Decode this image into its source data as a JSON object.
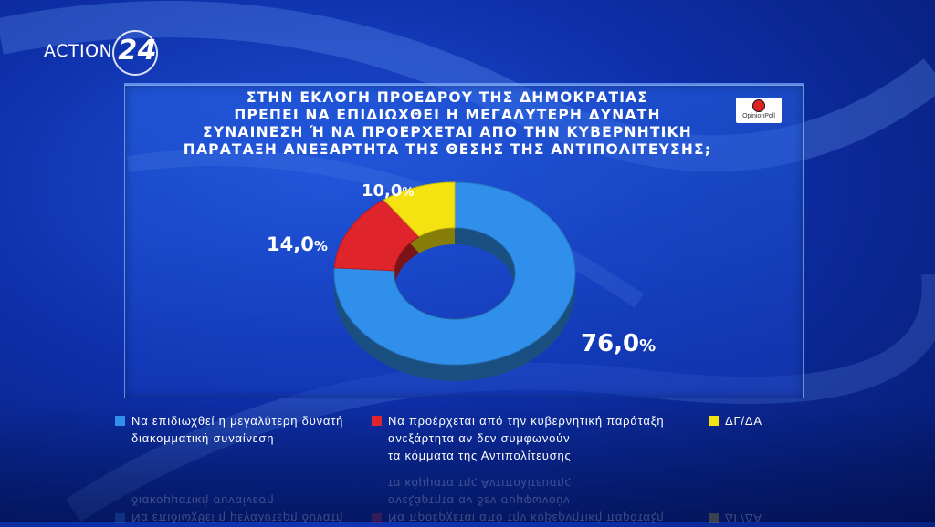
{
  "channel": {
    "name": "ACTION",
    "number": "24"
  },
  "brand": {
    "name": "OpinionPoll"
  },
  "title_lines": [
    "ΣΤΗΝ ΕΚΛΟΓΗ ΠΡΟΕΔΡΟΥ ΤΗΣ ΔΗΜΟΚΡΑΤΙΑΣ",
    "ΠΡΕΠΕΙ ΝΑ ΕΠΙΔΙΩΧΘΕΙ Η ΜΕΓΑΛΥΤΕΡΗ ΔΥΝΑΤΗ",
    "ΣΥΝΑΙΝΕΣΗ Ή ΝΑ ΠΡΟΕΡΧΕΤΑΙ ΑΠΟ ΤΗΝ ΚΥΒΕΡΝΗΤΙΚΗ",
    "ΠΑΡΑΤΑΞΗ ΑΝΕΞΑΡΤΗΤΑ ΤΗΣ ΘΕΣΗΣ ΤΗΣ ΑΝΤΙΠΟΛΙΤΕΥΣΗΣ;"
  ],
  "chart_data": {
    "type": "pie",
    "title": "ΣΤΗΝ ΕΚΛΟΓΗ ΠΡΟΕΔΡΟΥ ΤΗΣ ΔΗΜΟΚΡΑΤΙΑΣ ΠΡΕΠΕΙ ΝΑ ΕΠΙΔΙΩΧΘΕΙ Η ΜΕΓΑΛΥΤΕΡΗ ΔΥΝΑΤΗ ΣΥΝΑΙΝΕΣΗ Ή ΝΑ ΠΡΟΕΡΧΕΤΑΙ ΑΠΟ ΤΗΝ ΚΥΒΕΡΝΗΤΙΚΗ ΠΑΡΑΤΑΞΗ ΑΝΕΞΑΡΤΗΤΑ ΤΗΣ ΘΕΣΗΣ ΤΗΣ ΑΝΤΙΠΟΛΙΤΕΥΣΗΣ;",
    "donut": true,
    "legend_position": "bottom",
    "slices": [
      {
        "label": "Να επιδιωχθεί η μεγαλύτερη δυνατή διακομματική συναίνεση",
        "value": 76.0,
        "display": "76,0",
        "color": "#2f8fea"
      },
      {
        "label": "Να προέρχεται από την κυβερνητική παράταξη ανεξάρτητα αν δεν συμφωνούν τα κόμματα της Αντιπολίτευσης",
        "value": 14.0,
        "display": "14,0",
        "color": "#e0242b"
      },
      {
        "label": "ΔΓ/ΔΑ",
        "value": 10.0,
        "display": "10,0",
        "color": "#f5e311"
      }
    ]
  },
  "legend": [
    {
      "lines": [
        "Να επιδιωχθεί η μεγαλύτερη δυνατή",
        "διακομματική συναίνεση"
      ]
    },
    {
      "lines": [
        "Να προέρχεται από την κυβερνητική παράταξη",
        "ανεξάρτητα αν δεν συμφωνούν",
        "τα κόμματα της Αντιπολίτευσης"
      ]
    },
    {
      "lines": [
        "ΔΓ/ΔΑ"
      ]
    }
  ],
  "percent_sign": "%"
}
